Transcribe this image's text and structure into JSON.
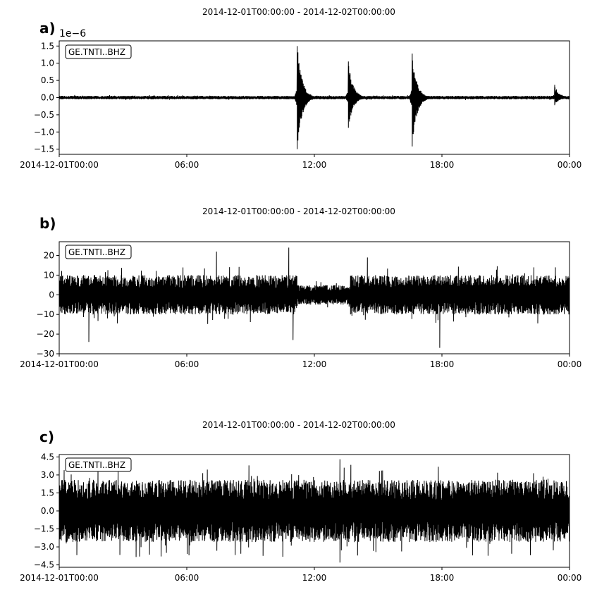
{
  "panels": [
    {
      "label": "a)",
      "title": "2014-12-01T00:00:00  -  2014-12-02T00:00:00",
      "legend": "GE.TNTI..BHZ",
      "multiplier": "1e−6"
    },
    {
      "label": "b)",
      "title": "2014-12-01T00:00:00  -  2014-12-02T00:00:00",
      "legend": "GE.TNTI..BHZ",
      "multiplier": ""
    },
    {
      "label": "c)",
      "title": "2014-12-01T00:00:00  -  2014-12-02T00:00:00",
      "legend": "GE.TNTI..BHZ",
      "multiplier": ""
    }
  ],
  "chart_data": [
    {
      "type": "line",
      "title": "2014-12-01T00:00:00  -  2014-12-02T00:00:00",
      "legend": [
        "GE.TNTI..BHZ"
      ],
      "legend_placement": "top-left",
      "x_unit": "hours",
      "xlim": [
        0,
        24
      ],
      "x_ticks": [
        0,
        6,
        12,
        18,
        24
      ],
      "x_tick_labels": [
        "2014-12-01T00:00",
        "06:00",
        "12:00",
        "18:00",
        "00:00"
      ],
      "ylim": [
        -1.65,
        1.65
      ],
      "y_ticks": [
        -1.5,
        -1.0,
        -0.5,
        0.0,
        0.5,
        1.0,
        1.5
      ],
      "y_tick_labels": [
        "−1.5",
        "−1.0",
        "−0.5",
        "0.0",
        "0.5",
        "1.0",
        "1.5"
      ],
      "y_multiplier": "1e−6",
      "grid": false,
      "series_color": "#000000",
      "noise_level": 0.05,
      "events": [
        {
          "time": 11.2,
          "max": 1.5,
          "min": -1.5
        },
        {
          "time": 13.6,
          "max": 1.05,
          "min": -0.88
        },
        {
          "time": 16.6,
          "max": 1.28,
          "min": -1.42
        },
        {
          "time": 23.3,
          "max": 0.37,
          "min": -0.22
        }
      ]
    },
    {
      "type": "line",
      "title": "2014-12-01T00:00:00  -  2014-12-02T00:00:00",
      "legend": [
        "GE.TNTI..BHZ"
      ],
      "legend_placement": "top-left",
      "x_unit": "hours",
      "xlim": [
        0,
        24
      ],
      "x_ticks": [
        0,
        6,
        12,
        18,
        24
      ],
      "x_tick_labels": [
        "2014-12-01T00:00",
        "06:00",
        "12:00",
        "18:00",
        "00:00"
      ],
      "ylim": [
        -30,
        27
      ],
      "y_ticks": [
        -30,
        -20,
        -10,
        0,
        10,
        20
      ],
      "y_tick_labels": [
        "−30",
        "−20",
        "−10",
        "0",
        "10",
        "20"
      ],
      "grid": false,
      "series_color": "#000000",
      "noise_level": 10,
      "quiet_intervals": [
        {
          "from": 11.2,
          "to": 13.7,
          "level": 5
        }
      ],
      "extremes": [
        {
          "time": 1.4,
          "value": -24
        },
        {
          "time": 10.8,
          "value": 24
        },
        {
          "time": 11.0,
          "value": -23
        },
        {
          "time": 17.9,
          "value": -27
        },
        {
          "time": 7.4,
          "value": 22
        },
        {
          "time": 14.5,
          "value": 19
        }
      ]
    },
    {
      "type": "line",
      "title": "2014-12-01T00:00:00  -  2014-12-02T00:00:00",
      "legend": [
        "GE.TNTI..BHZ"
      ],
      "legend_placement": "top-left",
      "x_unit": "hours",
      "xlim": [
        0,
        24
      ],
      "x_ticks": [
        0,
        6,
        12,
        18,
        24
      ],
      "x_tick_labels": [
        "2014-12-01T00:00",
        "06:00",
        "12:00",
        "18:00",
        "00:00"
      ],
      "ylim": [
        -4.7,
        4.7
      ],
      "y_ticks": [
        -4.5,
        -3.0,
        -1.5,
        0.0,
        1.5,
        3.0,
        4.5
      ],
      "y_tick_labels": [
        "−4.5",
        "−3.0",
        "−1.5",
        "0.0",
        "1.5",
        "3.0",
        "4.5"
      ],
      "grid": false,
      "series_color": "#000000",
      "noise_level": 2.6,
      "extremes": [
        {
          "time": 13.2,
          "value": 4.3
        },
        {
          "time": 13.2,
          "value": -4.3
        },
        {
          "time": 6.1,
          "value": -3.7
        },
        {
          "time": 4.8,
          "value": -3.8
        }
      ]
    }
  ]
}
